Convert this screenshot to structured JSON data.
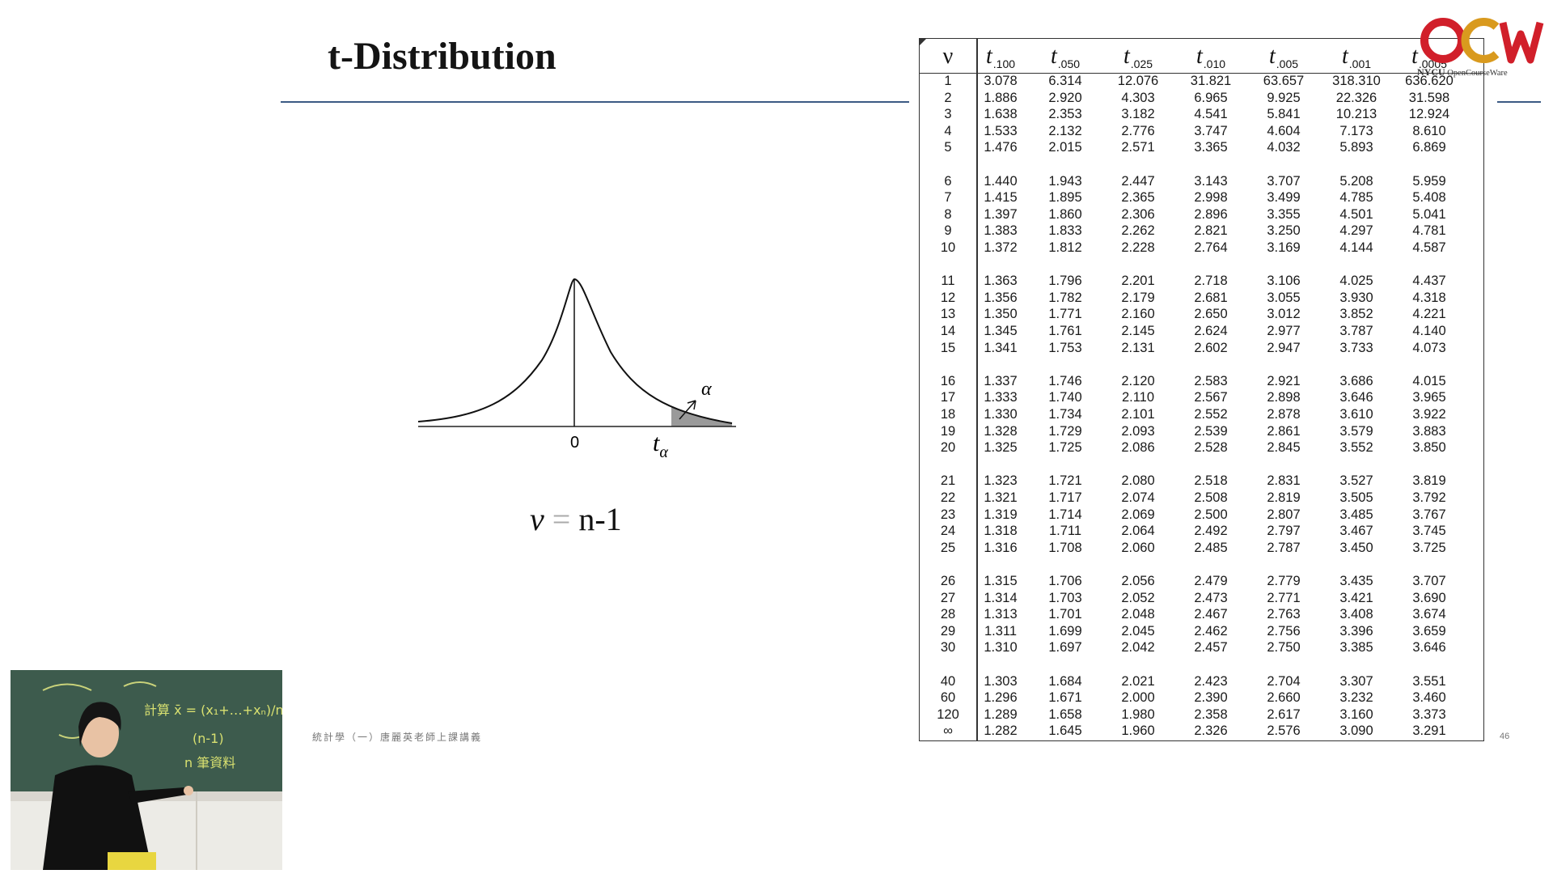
{
  "slide": {
    "title": "t-Distribution",
    "footer": "統計學（一）唐麗英老師上課講義",
    "page_number": "46"
  },
  "figure": {
    "zero_label": "0",
    "t_symbol": "t",
    "t_subscript": "α",
    "alpha_label": "α"
  },
  "formula": {
    "lhs": "v",
    "eq": "=",
    "rhs": "n-1"
  },
  "logo": {
    "brand": "NYCU",
    "tagline": "OpenCourseWare"
  },
  "video": {
    "board_text_1": "計算 x̄ = (x₁+…+xₙ)/n",
    "board_text_2": "(n-1)",
    "board_text_3": "n 筆資料"
  },
  "t_table": {
    "nu_header": "ν",
    "t_symbol": "t",
    "alpha_headers": [
      ".100",
      ".050",
      ".025",
      ".010",
      ".005",
      ".001",
      ".0005"
    ],
    "groups": [
      [
        {
          "nu": "1",
          "v": [
            "3.078",
            "6.314",
            "12.076",
            "31.821",
            "63.657",
            "318.310",
            "636.620"
          ]
        },
        {
          "nu": "2",
          "v": [
            "1.886",
            "2.920",
            "4.303",
            "6.965",
            "9.925",
            "22.326",
            "31.598"
          ]
        },
        {
          "nu": "3",
          "v": [
            "1.638",
            "2.353",
            "3.182",
            "4.541",
            "5.841",
            "10.213",
            "12.924"
          ]
        },
        {
          "nu": "4",
          "v": [
            "1.533",
            "2.132",
            "2.776",
            "3.747",
            "4.604",
            "7.173",
            "8.610"
          ]
        },
        {
          "nu": "5",
          "v": [
            "1.476",
            "2.015",
            "2.571",
            "3.365",
            "4.032",
            "5.893",
            "6.869"
          ]
        }
      ],
      [
        {
          "nu": "6",
          "v": [
            "1.440",
            "1.943",
            "2.447",
            "3.143",
            "3.707",
            "5.208",
            "5.959"
          ]
        },
        {
          "nu": "7",
          "v": [
            "1.415",
            "1.895",
            "2.365",
            "2.998",
            "3.499",
            "4.785",
            "5.408"
          ]
        },
        {
          "nu": "8",
          "v": [
            "1.397",
            "1.860",
            "2.306",
            "2.896",
            "3.355",
            "4.501",
            "5.041"
          ]
        },
        {
          "nu": "9",
          "v": [
            "1.383",
            "1.833",
            "2.262",
            "2.821",
            "3.250",
            "4.297",
            "4.781"
          ]
        },
        {
          "nu": "10",
          "v": [
            "1.372",
            "1.812",
            "2.228",
            "2.764",
            "3.169",
            "4.144",
            "4.587"
          ]
        }
      ],
      [
        {
          "nu": "11",
          "v": [
            "1.363",
            "1.796",
            "2.201",
            "2.718",
            "3.106",
            "4.025",
            "4.437"
          ]
        },
        {
          "nu": "12",
          "v": [
            "1.356",
            "1.782",
            "2.179",
            "2.681",
            "3.055",
            "3.930",
            "4.318"
          ]
        },
        {
          "nu": "13",
          "v": [
            "1.350",
            "1.771",
            "2.160",
            "2.650",
            "3.012",
            "3.852",
            "4.221"
          ]
        },
        {
          "nu": "14",
          "v": [
            "1.345",
            "1.761",
            "2.145",
            "2.624",
            "2.977",
            "3.787",
            "4.140"
          ]
        },
        {
          "nu": "15",
          "v": [
            "1.341",
            "1.753",
            "2.131",
            "2.602",
            "2.947",
            "3.733",
            "4.073"
          ]
        }
      ],
      [
        {
          "nu": "16",
          "v": [
            "1.337",
            "1.746",
            "2.120",
            "2.583",
            "2.921",
            "3.686",
            "4.015"
          ]
        },
        {
          "nu": "17",
          "v": [
            "1.333",
            "1.740",
            "2.110",
            "2.567",
            "2.898",
            "3.646",
            "3.965"
          ]
        },
        {
          "nu": "18",
          "v": [
            "1.330",
            "1.734",
            "2.101",
            "2.552",
            "2.878",
            "3.610",
            "3.922"
          ]
        },
        {
          "nu": "19",
          "v": [
            "1.328",
            "1.729",
            "2.093",
            "2.539",
            "2.861",
            "3.579",
            "3.883"
          ]
        },
        {
          "nu": "20",
          "v": [
            "1.325",
            "1.725",
            "2.086",
            "2.528",
            "2.845",
            "3.552",
            "3.850"
          ]
        }
      ],
      [
        {
          "nu": "21",
          "v": [
            "1.323",
            "1.721",
            "2.080",
            "2.518",
            "2.831",
            "3.527",
            "3.819"
          ]
        },
        {
          "nu": "22",
          "v": [
            "1.321",
            "1.717",
            "2.074",
            "2.508",
            "2.819",
            "3.505",
            "3.792"
          ]
        },
        {
          "nu": "23",
          "v": [
            "1.319",
            "1.714",
            "2.069",
            "2.500",
            "2.807",
            "3.485",
            "3.767"
          ]
        },
        {
          "nu": "24",
          "v": [
            "1.318",
            "1.711",
            "2.064",
            "2.492",
            "2.797",
            "3.467",
            "3.745"
          ]
        },
        {
          "nu": "25",
          "v": [
            "1.316",
            "1.708",
            "2.060",
            "2.485",
            "2.787",
            "3.450",
            "3.725"
          ]
        }
      ],
      [
        {
          "nu": "26",
          "v": [
            "1.315",
            "1.706",
            "2.056",
            "2.479",
            "2.779",
            "3.435",
            "3.707"
          ]
        },
        {
          "nu": "27",
          "v": [
            "1.314",
            "1.703",
            "2.052",
            "2.473",
            "2.771",
            "3.421",
            "3.690"
          ]
        },
        {
          "nu": "28",
          "v": [
            "1.313",
            "1.701",
            "2.048",
            "2.467",
            "2.763",
            "3.408",
            "3.674"
          ]
        },
        {
          "nu": "29",
          "v": [
            "1.311",
            "1.699",
            "2.045",
            "2.462",
            "2.756",
            "3.396",
            "3.659"
          ]
        },
        {
          "nu": "30",
          "v": [
            "1.310",
            "1.697",
            "2.042",
            "2.457",
            "2.750",
            "3.385",
            "3.646"
          ]
        }
      ],
      [
        {
          "nu": "40",
          "v": [
            "1.303",
            "1.684",
            "2.021",
            "2.423",
            "2.704",
            "3.307",
            "3.551"
          ]
        },
        {
          "nu": "60",
          "v": [
            "1.296",
            "1.671",
            "2.000",
            "2.390",
            "2.660",
            "3.232",
            "3.460"
          ]
        },
        {
          "nu": "120",
          "v": [
            "1.289",
            "1.658",
            "1.980",
            "2.358",
            "2.617",
            "3.160",
            "3.373"
          ]
        },
        {
          "nu": "∞",
          "v": [
            "1.282",
            "1.645",
            "1.960",
            "2.326",
            "2.576",
            "3.090",
            "3.291"
          ]
        }
      ]
    ]
  }
}
